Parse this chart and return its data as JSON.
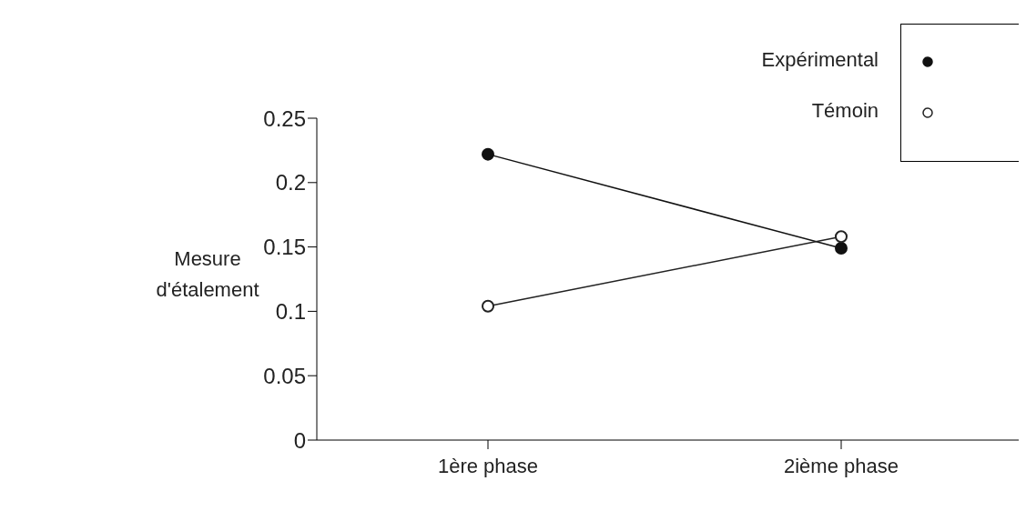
{
  "chart_data": {
    "type": "line",
    "ylabel": "Mesure d'étalement",
    "categories": [
      "1ère phase",
      "2ième phase"
    ],
    "series": [
      {
        "name": "Expérimental",
        "color": "#111111",
        "values": [
          0.222,
          0.149
        ]
      },
      {
        "name": "Témoin",
        "color": "#222222",
        "values": [
          0.104,
          0.158
        ]
      }
    ],
    "ylim": [
      0,
      0.25
    ],
    "yticks": [
      0,
      0.05,
      0.1,
      0.15,
      0.2,
      0.25
    ],
    "grid": false,
    "legend": "top right",
    "marker": "circle",
    "line_style": "solid"
  }
}
